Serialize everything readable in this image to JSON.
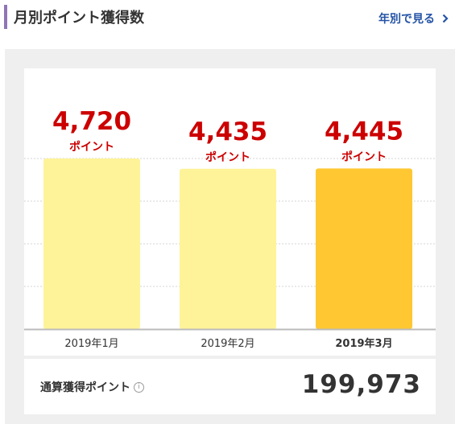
{
  "header": {
    "title": "月別ポイント獲得数",
    "yearly_link_label": "年別で見る"
  },
  "chart_data": {
    "type": "bar",
    "categories": [
      "2019年1月",
      "2019年2月",
      "2019年3月"
    ],
    "values": [
      4720,
      4435,
      4445
    ],
    "value_labels": [
      "4,720",
      "4,435",
      "4,445"
    ],
    "unit_label": "ポイント",
    "highlighted_index": 2,
    "ylim": [
      0,
      4720
    ],
    "grid": true,
    "colors": {
      "bar": "#fff399",
      "bar_highlight": "#ffc832",
      "value_text": "#cc0000",
      "gridline": "#d6d6d6",
      "baseline": "#bbbbbb"
    }
  },
  "total": {
    "label": "通算獲得ポイント",
    "info_icon": "info-icon",
    "value": "199,973"
  }
}
